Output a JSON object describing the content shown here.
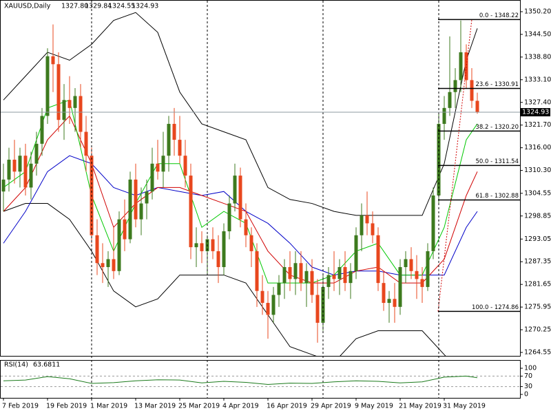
{
  "chart_data": {
    "type": "candlestick",
    "title": "XAUUSD,Daily",
    "last_bar_labels": [
      "1327.80",
      "1329.84",
      "1324.55",
      "1324.93"
    ],
    "categories": [
      "7 Feb 2019",
      null,
      null,
      null,
      null,
      null,
      null,
      null,
      "19 Feb 2019",
      null,
      null,
      null,
      null,
      null,
      null,
      null,
      "1 Mar 2019",
      null,
      null,
      null,
      null,
      null,
      null,
      null,
      "13 Mar 2019",
      null,
      null,
      null,
      null,
      null,
      null,
      null,
      "25 Mar 2019",
      null,
      null,
      null,
      null,
      null,
      null,
      null,
      "4 Apr 2019",
      null,
      null,
      null,
      null,
      null,
      null,
      null,
      "16 Apr 2019",
      null,
      null,
      null,
      null,
      null,
      null,
      null,
      "29 Apr 2019",
      null,
      null,
      null,
      null,
      null,
      null,
      null,
      "9 May 2019",
      null,
      null,
      null,
      null,
      null,
      null,
      null,
      "21 May 2019",
      null,
      null,
      null,
      null,
      null,
      null,
      null,
      "31 May 2019",
      null,
      null,
      null,
      null,
      null,
      null
    ],
    "candles": [
      [
        1305,
        1312,
        1300,
        1308
      ],
      [
        1308,
        1316,
        1305,
        1313
      ],
      [
        1313,
        1318,
        1307,
        1310
      ],
      [
        1310,
        1316,
        1306,
        1314
      ],
      [
        1314,
        1317,
        1304,
        1306
      ],
      [
        1306,
        1315,
        1303,
        1312
      ],
      [
        1312,
        1320,
        1309,
        1317
      ],
      [
        1317,
        1326,
        1314,
        1324
      ],
      [
        1324,
        1341,
        1322,
        1339
      ],
      [
        1339,
        1347,
        1330,
        1337
      ],
      [
        1337,
        1340,
        1320,
        1323
      ],
      [
        1323,
        1332,
        1318,
        1328
      ],
      [
        1328,
        1334,
        1322,
        1326
      ],
      [
        1326,
        1331,
        1320,
        1329
      ],
      [
        1329,
        1332,
        1316,
        1320
      ],
      [
        1320,
        1324,
        1310,
        1314
      ],
      [
        1314,
        1316,
        1292,
        1294
      ],
      [
        1294,
        1298,
        1284,
        1287
      ],
      [
        1287,
        1292,
        1282,
        1286
      ],
      [
        1286,
        1290,
        1281,
        1288
      ],
      [
        1288,
        1296,
        1283,
        1285
      ],
      [
        1285,
        1300,
        1284,
        1298
      ],
      [
        1298,
        1303,
        1290,
        1293
      ],
      [
        1293,
        1310,
        1292,
        1308
      ],
      [
        1308,
        1312,
        1296,
        1298
      ],
      [
        1298,
        1306,
        1294,
        1302
      ],
      [
        1302,
        1308,
        1298,
        1305
      ],
      [
        1305,
        1316,
        1303,
        1312
      ],
      [
        1312,
        1318,
        1308,
        1310
      ],
      [
        1310,
        1320,
        1306,
        1314
      ],
      [
        1314,
        1324,
        1310,
        1322
      ],
      [
        1322,
        1326,
        1314,
        1318
      ],
      [
        1318,
        1324,
        1312,
        1314
      ],
      [
        1314,
        1318,
        1306,
        1309
      ],
      [
        1309,
        1312,
        1288,
        1291
      ],
      [
        1291,
        1296,
        1286,
        1292
      ],
      [
        1292,
        1295,
        1287,
        1290
      ],
      [
        1290,
        1294,
        1284,
        1293
      ],
      [
        1293,
        1296,
        1288,
        1290
      ],
      [
        1290,
        1294,
        1282,
        1286
      ],
      [
        1286,
        1297,
        1284,
        1295
      ],
      [
        1295,
        1304,
        1293,
        1302
      ],
      [
        1302,
        1312,
        1300,
        1309
      ],
      [
        1309,
        1311,
        1296,
        1298
      ],
      [
        1298,
        1302,
        1291,
        1294
      ],
      [
        1294,
        1296,
        1286,
        1290
      ],
      [
        1290,
        1292,
        1276,
        1280
      ],
      [
        1280,
        1284,
        1274,
        1277
      ],
      [
        1277,
        1280,
        1268,
        1274
      ],
      [
        1274,
        1281,
        1272,
        1279
      ],
      [
        1279,
        1284,
        1276,
        1282
      ],
      [
        1282,
        1288,
        1278,
        1286
      ],
      [
        1286,
        1290,
        1280,
        1283
      ],
      [
        1283,
        1290,
        1279,
        1287
      ],
      [
        1287,
        1290,
        1280,
        1282
      ],
      [
        1282,
        1287,
        1276,
        1285
      ],
      [
        1285,
        1288,
        1277,
        1279
      ],
      [
        1279,
        1283,
        1267,
        1272
      ],
      [
        1272,
        1284,
        1270,
        1281
      ],
      [
        1281,
        1286,
        1278,
        1284
      ],
      [
        1284,
        1290,
        1280,
        1283
      ],
      [
        1283,
        1288,
        1279,
        1286
      ],
      [
        1286,
        1290,
        1280,
        1282
      ],
      [
        1282,
        1287,
        1278,
        1285
      ],
      [
        1285,
        1296,
        1283,
        1294
      ],
      [
        1294,
        1302,
        1290,
        1299
      ],
      [
        1299,
        1305,
        1294,
        1297
      ],
      [
        1297,
        1300,
        1292,
        1294
      ],
      [
        1294,
        1296,
        1280,
        1282
      ],
      [
        1282,
        1285,
        1275,
        1277
      ],
      [
        1277,
        1280,
        1272,
        1278
      ],
      [
        1278,
        1282,
        1272,
        1276
      ],
      [
        1276,
        1288,
        1274,
        1286
      ],
      [
        1286,
        1290,
        1282,
        1288
      ],
      [
        1288,
        1291,
        1283,
        1285
      ],
      [
        1285,
        1289,
        1278,
        1283
      ],
      [
        1283,
        1286,
        1277,
        1281
      ],
      [
        1281,
        1292,
        1280,
        1290
      ],
      [
        1290,
        1306,
        1288,
        1304
      ],
      [
        1304,
        1325,
        1302,
        1322
      ],
      [
        1322,
        1329,
        1318,
        1326
      ],
      [
        1326,
        1344,
        1324,
        1330
      ],
      [
        1330,
        1336,
        1326,
        1333
      ],
      [
        1333,
        1348,
        1330,
        1340
      ],
      [
        1340,
        1342,
        1331,
        1333
      ],
      [
        1333,
        1336,
        1326,
        1327.8
      ],
      [
        1327.8,
        1329.84,
        1324.55,
        1324.93
      ]
    ],
    "up_color": "#3d7a1e",
    "down_color": "#e8471e",
    "ylim": [
      1263.51,
      1353.14
    ],
    "yticks": [
      {
        "value": 1350.2,
        "label": "1350.20"
      },
      {
        "value": 1344.5,
        "label": "1344.50"
      },
      {
        "value": 1338.8,
        "label": "1338.80"
      },
      {
        "value": 1333.1,
        "label": "1333.10"
      },
      {
        "value": 1327.4,
        "label": "1327.40"
      },
      {
        "value": 1321.7,
        "label": "1321.70"
      },
      {
        "value": 1316,
        "label": "1316.00"
      },
      {
        "value": 1310.3,
        "label": "1310.30"
      },
      1304.55,
      1298.85,
      1293.05,
      1287.35,
      1281.65,
      1275.95,
      1270.25,
      1264.55
    ],
    "indicators": {
      "x": [
        0,
        4,
        8,
        12,
        16,
        20,
        24,
        28,
        32,
        36,
        40,
        44,
        48,
        52,
        56,
        60,
        64,
        68,
        72,
        76,
        80,
        84,
        86
      ],
      "series": [
        {
          "color": "#000000",
          "values": [
            1328,
            1334,
            1340,
            1338,
            1342,
            1348,
            1350,
            1345,
            1330,
            1322,
            1320,
            1318,
            1306,
            1303,
            1302,
            1300,
            1299,
            1299,
            1299,
            1299,
            1312,
            1338,
            1346
          ]
        },
        {
          "color": "#000000",
          "values": [
            1300,
            1302,
            1302,
            1298,
            1290,
            1280,
            1276,
            1278,
            1284,
            1284,
            1284,
            1282,
            1274,
            1266,
            1264,
            1262,
            1268,
            1270,
            1270,
            1270,
            1264,
            1258,
            1256
          ]
        },
        {
          "color": "#0000c8",
          "values": [
            1292,
            1300,
            1310,
            1314,
            1312,
            1306,
            1304,
            1306,
            1305,
            1304,
            1305,
            1300,
            1297,
            1292,
            1286,
            1284,
            1285,
            1285,
            1284,
            1284,
            1284,
            1296,
            1300
          ]
        },
        {
          "color": "#d00000",
          "values": [
            1300,
            1306,
            1318,
            1324,
            1312,
            1296,
            1302,
            1306,
            1306,
            1304,
            1302,
            1300,
            1290,
            1284,
            1282,
            1282,
            1285,
            1286,
            1282,
            1282,
            1288,
            1304,
            1310
          ]
        },
        {
          "color": "#00c800",
          "values": [
            1306,
            1310,
            1326,
            1328,
            1304,
            1290,
            1302,
            1312,
            1312,
            1296,
            1300,
            1297,
            1282,
            1282,
            1282,
            1284,
            1290,
            1292,
            1284,
            1284,
            1296,
            1318,
            1322
          ]
        }
      ]
    },
    "fib_levels": [
      {
        "label": "0.0 - 1348.22",
        "value": 1348.22
      },
      {
        "label": "23.6 - 1330.91",
        "value": 1330.91
      },
      {
        "label": "38.2 - 1320.20",
        "value": 1320.2
      },
      {
        "label": "50.0 - 1311.54",
        "value": 1311.54
      },
      {
        "label": "61.8 - 1302.88",
        "value": 1302.88
      },
      {
        "label": "100.0 - 1274.86",
        "value": 1274.86
      }
    ],
    "rsi": {
      "name": "RSI(14)",
      "color": "#1a7a1a",
      "values": [
        52,
        55,
        68,
        60,
        42,
        45,
        52,
        56,
        55,
        44,
        50,
        46,
        38,
        43,
        42,
        48,
        52,
        50,
        44,
        48,
        66,
        70,
        63.6811
      ],
      "ylim": [
        0,
        100
      ],
      "yticks": [
        100,
        70,
        30,
        0
      ]
    }
  }
}
